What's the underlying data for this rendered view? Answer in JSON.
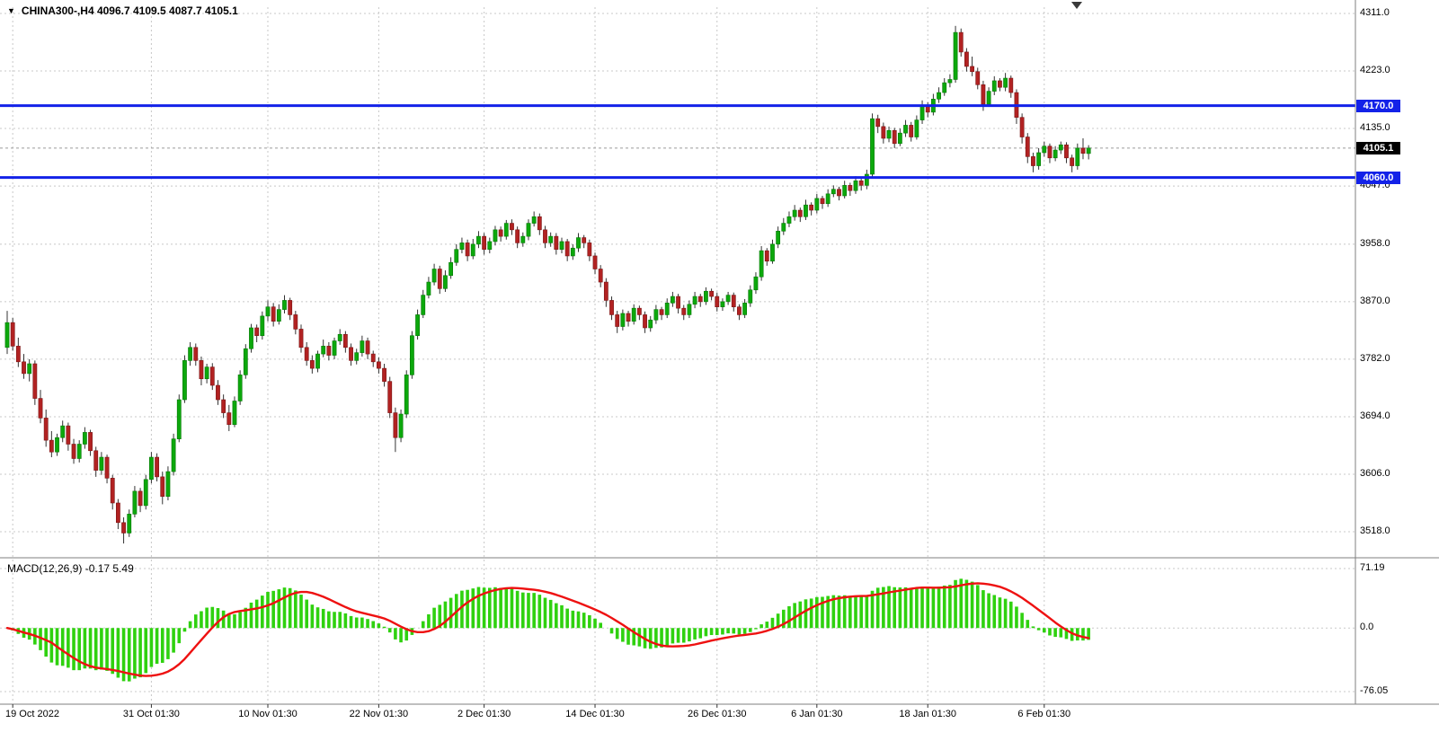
{
  "header": {
    "collapse_icon": "▼",
    "ohlc_label": "CHINA300-,H4 4096.7 4109.5 4087.7 4105.1"
  },
  "macd_panel": {
    "label": "MACD(12,26,9) -0.17 5.49"
  },
  "colors": {
    "grid": "#c8c8c8",
    "up_body": "#0ca80c",
    "down_body": "#b22222",
    "wick": "#333333",
    "hline": "#1322e8",
    "current_line": "#9a9a9a",
    "current_tag_bg": "#000000",
    "macd_hist": "#2fd10f",
    "macd_signal": "#ee1111",
    "separator": "#7f7f7f",
    "axis_text": "#000000"
  },
  "chart_data": {
    "type": "candlestick",
    "title": "CHINA300- H4 with MACD(12,26,9)",
    "symbol": "CHINA300-",
    "timeframe": "H4",
    "last_bar": {
      "open": 4096.7,
      "high": 4109.5,
      "low": 4087.7,
      "close": 4105.1
    },
    "current_price": 4105.1,
    "horizontal_levels": [
      4170.0,
      4060.0
    ],
    "price_axis_ticks": [
      4311.0,
      4223.0,
      4135.0,
      4047.0,
      3958.0,
      3870.0,
      3782.0,
      3694.0,
      3606.0,
      3518.0
    ],
    "x_axis_labels": [
      {
        "text": "19 Oct 2022",
        "i": 1
      },
      {
        "text": "31 Oct 01:30",
        "i": 26
      },
      {
        "text": "10 Nov 01:30",
        "i": 47
      },
      {
        "text": "22 Nov 01:30",
        "i": 67
      },
      {
        "text": "2 Dec 01:30",
        "i": 86
      },
      {
        "text": "14 Dec 01:30",
        "i": 106
      },
      {
        "text": "26 Dec 01:30",
        "i": 128
      },
      {
        "text": "6 Jan 01:30",
        "i": 146
      },
      {
        "text": "18 Jan 01:30",
        "i": 166
      },
      {
        "text": "6 Feb 01:30",
        "i": 187
      }
    ],
    "macd": {
      "params": [
        12,
        26,
        9
      ],
      "last_main": -0.17,
      "last_signal": 5.49,
      "axis_ticks": [
        71.19,
        0.0,
        -76.05
      ],
      "axis_tick_labels": [
        "71.19",
        "0.0",
        "-76.05"
      ]
    },
    "candles": [
      [
        3800,
        3856,
        3790,
        3838
      ],
      [
        3838,
        3845,
        3795,
        3802
      ],
      [
        3802,
        3815,
        3770,
        3778
      ],
      [
        3778,
        3790,
        3752,
        3760
      ],
      [
        3760,
        3782,
        3748,
        3775
      ],
      [
        3775,
        3780,
        3712,
        3722
      ],
      [
        3722,
        3735,
        3684,
        3692
      ],
      [
        3692,
        3705,
        3648,
        3658
      ],
      [
        3658,
        3672,
        3632,
        3640
      ],
      [
        3640,
        3668,
        3634,
        3662
      ],
      [
        3662,
        3688,
        3655,
        3680
      ],
      [
        3680,
        3685,
        3642,
        3652
      ],
      [
        3652,
        3660,
        3622,
        3630
      ],
      [
        3630,
        3658,
        3624,
        3652
      ],
      [
        3652,
        3678,
        3645,
        3670
      ],
      [
        3670,
        3674,
        3634,
        3642
      ],
      [
        3642,
        3648,
        3602,
        3612
      ],
      [
        3612,
        3640,
        3605,
        3632
      ],
      [
        3632,
        3636,
        3592,
        3600
      ],
      [
        3600,
        3605,
        3552,
        3562
      ],
      [
        3562,
        3568,
        3522,
        3532
      ],
      [
        3532,
        3540,
        3500,
        3516
      ],
      [
        3516,
        3552,
        3510,
        3545
      ],
      [
        3545,
        3588,
        3540,
        3580
      ],
      [
        3580,
        3585,
        3548,
        3558
      ],
      [
        3558,
        3605,
        3552,
        3598
      ],
      [
        3598,
        3640,
        3592,
        3632
      ],
      [
        3632,
        3638,
        3595,
        3602
      ],
      [
        3602,
        3610,
        3560,
        3572
      ],
      [
        3572,
        3618,
        3566,
        3610
      ],
      [
        3610,
        3668,
        3604,
        3660
      ],
      [
        3660,
        3728,
        3655,
        3720
      ],
      [
        3720,
        3788,
        3715,
        3780
      ],
      [
        3780,
        3808,
        3772,
        3800
      ],
      [
        3800,
        3806,
        3772,
        3780
      ],
      [
        3780,
        3786,
        3742,
        3752
      ],
      [
        3752,
        3775,
        3745,
        3770
      ],
      [
        3770,
        3776,
        3735,
        3742
      ],
      [
        3742,
        3750,
        3712,
        3720
      ],
      [
        3720,
        3728,
        3692,
        3700
      ],
      [
        3700,
        3712,
        3672,
        3682
      ],
      [
        3682,
        3725,
        3678,
        3718
      ],
      [
        3718,
        3765,
        3712,
        3758
      ],
      [
        3758,
        3805,
        3752,
        3798
      ],
      [
        3798,
        3836,
        3792,
        3830
      ],
      [
        3830,
        3835,
        3808,
        3818
      ],
      [
        3818,
        3855,
        3812,
        3848
      ],
      [
        3848,
        3872,
        3840,
        3862
      ],
      [
        3862,
        3868,
        3832,
        3840
      ],
      [
        3840,
        3866,
        3835,
        3858
      ],
      [
        3858,
        3880,
        3852,
        3872
      ],
      [
        3872,
        3876,
        3842,
        3850
      ],
      [
        3850,
        3856,
        3820,
        3828
      ],
      [
        3828,
        3835,
        3792,
        3800
      ],
      [
        3800,
        3808,
        3772,
        3780
      ],
      [
        3780,
        3788,
        3760,
        3768
      ],
      [
        3768,
        3795,
        3762,
        3790
      ],
      [
        3790,
        3812,
        3785,
        3802
      ],
      [
        3802,
        3808,
        3780,
        3788
      ],
      [
        3788,
        3815,
        3782,
        3810
      ],
      [
        3810,
        3828,
        3804,
        3820
      ],
      [
        3820,
        3825,
        3792,
        3800
      ],
      [
        3800,
        3806,
        3772,
        3780
      ],
      [
        3780,
        3798,
        3774,
        3792
      ],
      [
        3792,
        3818,
        3786,
        3810
      ],
      [
        3810,
        3815,
        3782,
        3790
      ],
      [
        3790,
        3795,
        3770,
        3778
      ],
      [
        3778,
        3785,
        3760,
        3768
      ],
      [
        3768,
        3775,
        3740,
        3748
      ],
      [
        3748,
        3755,
        3692,
        3700
      ],
      [
        3700,
        3708,
        3640,
        3662
      ],
      [
        3662,
        3705,
        3655,
        3698
      ],
      [
        3698,
        3765,
        3692,
        3758
      ],
      [
        3758,
        3825,
        3752,
        3818
      ],
      [
        3818,
        3858,
        3812,
        3850
      ],
      [
        3850,
        3888,
        3845,
        3880
      ],
      [
        3880,
        3908,
        3875,
        3900
      ],
      [
        3900,
        3928,
        3895,
        3920
      ],
      [
        3920,
        3925,
        3882,
        3890
      ],
      [
        3890,
        3918,
        3885,
        3910
      ],
      [
        3910,
        3938,
        3905,
        3930
      ],
      [
        3930,
        3958,
        3925,
        3950
      ],
      [
        3950,
        3968,
        3944,
        3960
      ],
      [
        3960,
        3965,
        3932,
        3940
      ],
      [
        3940,
        3966,
        3935,
        3958
      ],
      [
        3958,
        3978,
        3952,
        3970
      ],
      [
        3970,
        3975,
        3942,
        3950
      ],
      [
        3950,
        3968,
        3944,
        3962
      ],
      [
        3962,
        3986,
        3956,
        3980
      ],
      [
        3980,
        3985,
        3962,
        3970
      ],
      [
        3970,
        3995,
        3965,
        3990
      ],
      [
        3990,
        3996,
        3972,
        3980
      ],
      [
        3980,
        3985,
        3952,
        3960
      ],
      [
        3960,
        3976,
        3954,
        3970
      ],
      [
        3970,
        3996,
        3964,
        3990
      ],
      [
        3990,
        4008,
        3985,
        4000
      ],
      [
        4000,
        4005,
        3972,
        3980
      ],
      [
        3980,
        3986,
        3952,
        3960
      ],
      [
        3960,
        3976,
        3954,
        3970
      ],
      [
        3970,
        3975,
        3942,
        3950
      ],
      [
        3950,
        3968,
        3944,
        3962
      ],
      [
        3962,
        3966,
        3932,
        3940
      ],
      [
        3940,
        3958,
        3934,
        3952
      ],
      [
        3952,
        3975,
        3946,
        3968
      ],
      [
        3968,
        3972,
        3952,
        3960
      ],
      [
        3960,
        3965,
        3932,
        3940
      ],
      [
        3940,
        3945,
        3912,
        3920
      ],
      [
        3920,
        3926,
        3892,
        3900
      ],
      [
        3900,
        3906,
        3862,
        3872
      ],
      [
        3872,
        3878,
        3842,
        3850
      ],
      [
        3850,
        3856,
        3822,
        3832
      ],
      [
        3832,
        3858,
        3826,
        3852
      ],
      [
        3852,
        3856,
        3832,
        3840
      ],
      [
        3840,
        3866,
        3835,
        3860
      ],
      [
        3860,
        3864,
        3842,
        3850
      ],
      [
        3850,
        3855,
        3822,
        3830
      ],
      [
        3830,
        3848,
        3824,
        3842
      ],
      [
        3842,
        3865,
        3836,
        3858
      ],
      [
        3858,
        3862,
        3842,
        3850
      ],
      [
        3850,
        3875,
        3845,
        3868
      ],
      [
        3868,
        3885,
        3862,
        3878
      ],
      [
        3878,
        3882,
        3852,
        3860
      ],
      [
        3860,
        3865,
        3842,
        3850
      ],
      [
        3850,
        3872,
        3845,
        3866
      ],
      [
        3866,
        3885,
        3860,
        3878
      ],
      [
        3878,
        3882,
        3862,
        3870
      ],
      [
        3870,
        3892,
        3865,
        3886
      ],
      [
        3886,
        3890,
        3872,
        3878
      ],
      [
        3878,
        3884,
        3855,
        3862
      ],
      [
        3862,
        3875,
        3856,
        3870
      ],
      [
        3870,
        3885,
        3865,
        3880
      ],
      [
        3880,
        3884,
        3855,
        3862
      ],
      [
        3862,
        3866,
        3842,
        3850
      ],
      [
        3850,
        3874,
        3845,
        3868
      ],
      [
        3868,
        3895,
        3862,
        3888
      ],
      [
        3888,
        3915,
        3882,
        3908
      ],
      [
        3908,
        3955,
        3902,
        3948
      ],
      [
        3948,
        3952,
        3925,
        3932
      ],
      [
        3932,
        3965,
        3928,
        3958
      ],
      [
        3958,
        3985,
        3952,
        3978
      ],
      [
        3978,
        3998,
        3972,
        3990
      ],
      [
        3990,
        4008,
        3984,
        4000
      ],
      [
        4000,
        4018,
        3994,
        4010
      ],
      [
        4010,
        4014,
        3992,
        4000
      ],
      [
        4000,
        4026,
        3995,
        4018
      ],
      [
        4018,
        4022,
        4002,
        4010
      ],
      [
        4010,
        4035,
        4005,
        4028
      ],
      [
        4028,
        4032,
        4012,
        4020
      ],
      [
        4020,
        4042,
        4015,
        4035
      ],
      [
        4035,
        4048,
        4030,
        4042
      ],
      [
        4042,
        4046,
        4025,
        4032
      ],
      [
        4032,
        4055,
        4028,
        4048
      ],
      [
        4048,
        4052,
        4032,
        4040
      ],
      [
        4040,
        4062,
        4035,
        4055
      ],
      [
        4055,
        4060,
        4040,
        4048
      ],
      [
        4048,
        4072,
        4042,
        4065
      ],
      [
        4065,
        4158,
        4060,
        4150
      ],
      [
        4150,
        4156,
        4128,
        4138
      ],
      [
        4138,
        4144,
        4112,
        4120
      ],
      [
        4120,
        4138,
        4114,
        4132
      ],
      [
        4132,
        4136,
        4105,
        4112
      ],
      [
        4112,
        4135,
        4108,
        4128
      ],
      [
        4128,
        4148,
        4122,
        4140
      ],
      [
        4140,
        4145,
        4115,
        4122
      ],
      [
        4122,
        4155,
        4118,
        4148
      ],
      [
        4148,
        4178,
        4142,
        4170
      ],
      [
        4170,
        4175,
        4152,
        4160
      ],
      [
        4160,
        4188,
        4155,
        4180
      ],
      [
        4180,
        4198,
        4174,
        4190
      ],
      [
        4190,
        4212,
        4185,
        4205
      ],
      [
        4205,
        4218,
        4198,
        4210
      ],
      [
        4210,
        4292,
        4205,
        4282
      ],
      [
        4282,
        4288,
        4245,
        4252
      ],
      [
        4252,
        4258,
        4222,
        4230
      ],
      [
        4230,
        4245,
        4215,
        4222
      ],
      [
        4222,
        4228,
        4195,
        4202
      ],
      [
        4202,
        4208,
        4162,
        4172
      ],
      [
        4172,
        4198,
        4168,
        4192
      ],
      [
        4192,
        4215,
        4186,
        4208
      ],
      [
        4208,
        4212,
        4192,
        4198
      ],
      [
        4198,
        4220,
        4192,
        4212
      ],
      [
        4212,
        4216,
        4182,
        4190
      ],
      [
        4190,
        4195,
        4142,
        4152
      ],
      [
        4152,
        4158,
        4112,
        4122
      ],
      [
        4122,
        4128,
        4082,
        4092
      ],
      [
        4092,
        4098,
        4068,
        4078
      ],
      [
        4078,
        4105,
        4072,
        4098
      ],
      [
        4098,
        4115,
        4092,
        4108
      ],
      [
        4108,
        4112,
        4082,
        4090
      ],
      [
        4090,
        4108,
        4085,
        4102
      ],
      [
        4102,
        4115,
        4096,
        4110
      ],
      [
        4110,
        4114,
        4082,
        4090
      ],
      [
        4090,
        4095,
        4068,
        4078
      ],
      [
        4078,
        4112,
        4072,
        4105
      ],
      [
        4105,
        4120,
        4088,
        4097
      ],
      [
        4096.7,
        4109.5,
        4087.7,
        4105.1
      ]
    ]
  }
}
